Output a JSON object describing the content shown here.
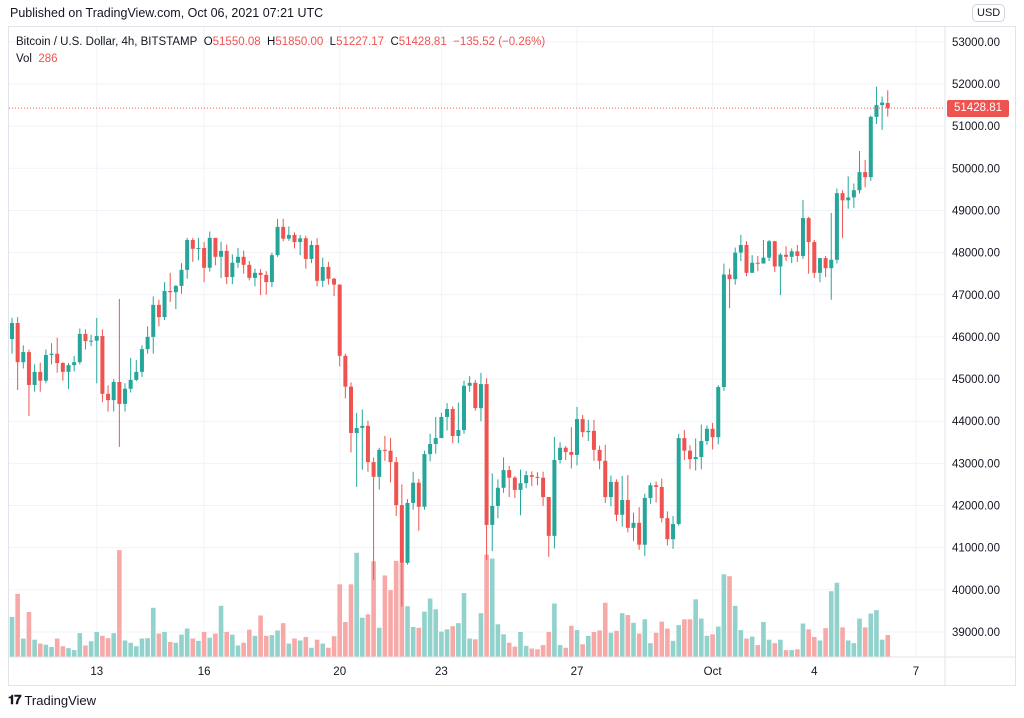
{
  "header": {
    "published": "Published on TradingView.com, Oct 06, 2021 07:21 UTC"
  },
  "legend": {
    "symbol": "Bitcoin / U.S. Dollar, 4h, BITSTAMP",
    "o_label": "O",
    "o": "51550.08",
    "h_label": "H",
    "h": "51850.00",
    "l_label": "L",
    "l": "51227.17",
    "c_label": "C",
    "c": "51428.81",
    "change": "−135.52 (−0.26%)",
    "vol_label": "Vol",
    "vol": "286"
  },
  "currency": "USD",
  "last_price": "51428.81",
  "brand": {
    "name": "TradingView",
    "logo_text": "17"
  },
  "colors": {
    "up": "#26a69a",
    "down": "#ef5350",
    "up_volume": "#92d2cc",
    "down_volume": "#f7a9a7",
    "grid": "#f0f3fa"
  },
  "chart_data": {
    "type": "candlestick",
    "interval": "4h",
    "ylim": [
      38500,
      53000
    ],
    "yticks": [
      "53000.00",
      "52000.00",
      "51000.00",
      "50000.00",
      "49000.00",
      "48000.00",
      "47000.00",
      "46000.00",
      "45000.00",
      "44000.00",
      "43000.00",
      "42000.00",
      "41000.00",
      "40000.00",
      "39000.00"
    ],
    "xticks": [
      {
        "label": "13",
        "index": 15
      },
      {
        "label": "16",
        "index": 34
      },
      {
        "label": "20",
        "index": 58
      },
      {
        "label": "23",
        "index": 76
      },
      {
        "label": "27",
        "index": 100
      },
      {
        "label": "Oct",
        "index": 124
      },
      {
        "label": "4",
        "index": 142
      },
      {
        "label": "7",
        "index": 160
      }
    ],
    "grid": true,
    "open": [
      45950,
      46330,
      45400,
      45640,
      44860,
      45170,
      44960,
      45570,
      45600,
      45380,
      45170,
      45330,
      45400,
      46070,
      45900,
      45910,
      46020,
      44650,
      44500,
      44930,
      44410,
      44770,
      44980,
      45170,
      45710,
      46000,
      46760,
      46470,
      47090,
      47060,
      47210,
      47590,
      48300,
      48090,
      48110,
      47640,
      48350,
      47900,
      48040,
      47420,
      47760,
      47900,
      47710,
      47400,
      47520,
      47470,
      47300,
      47940,
      48610,
      48330,
      48420,
      48250,
      48340,
      47850,
      48180,
      47330,
      47660,
      47380,
      47240,
      45550,
      44820,
      43720,
      43840,
      43890,
      43030,
      42680,
      43320,
      43300,
      43030,
      42010,
      40640,
      42060,
      42540,
      41970,
      43220,
      43460,
      43600,
      44100,
      44290,
      43650,
      43790,
      44840,
      44910,
      44310,
      44880,
      41540,
      41990,
      42420,
      42840,
      42660,
      42370,
      42530,
      42720,
      42680,
      42660,
      42200,
      41280,
      43080,
      43370,
      43270,
      43200,
      44050,
      43740,
      43770,
      43320,
      43060,
      42200,
      42560,
      41780,
      42130,
      41470,
      41590,
      41070,
      42180,
      42480,
      42440,
      41700,
      41200,
      41560,
      43600,
      43300,
      43100,
      43150,
      43530,
      43820,
      43620,
      44810,
      47480,
      47370,
      48000,
      48180,
      47520,
      47760,
      47740,
      47880,
      48270,
      47670,
      47950,
      47900,
      48030,
      47920,
      48820,
      48250,
      47520,
      47870,
      47630,
      47830,
      49410,
      49240,
      49310,
      49480,
      49910,
      49790,
      51220,
      51500,
      51550.08
    ],
    "high": [
      46450,
      46470,
      45800,
      45700,
      45350,
      45390,
      45700,
      45850,
      45980,
      45400,
      45380,
      45550,
      46200,
      46180,
      46050,
      46450,
      46180,
      44850,
      45000,
      46900,
      44900,
      45500,
      45450,
      45800,
      46250,
      46960,
      46880,
      47300,
      47520,
      47230,
      47750,
      48350,
      48350,
      48350,
      48250,
      48500,
      48350,
      48260,
      48190,
      47960,
      48110,
      48050,
      47800,
      47620,
      47610,
      47560,
      48000,
      48800,
      48800,
      48620,
      48480,
      48420,
      48400,
      48280,
      48340,
      47880,
      47780,
      47400,
      47250,
      45600,
      44920,
      44200,
      44280,
      44010,
      43140,
      43370,
      43650,
      43600,
      43150,
      42500,
      42150,
      42800,
      42630,
      43300,
      43700,
      44100,
      44200,
      44430,
      44350,
      44440,
      44960,
      45070,
      44980,
      45150,
      45020,
      42760,
      42620,
      43140,
      42940,
      42700,
      42850,
      42820,
      42810,
      42790,
      42800,
      42200,
      43630,
      43500,
      43410,
      43860,
      44340,
      44150,
      44030,
      44030,
      43420,
      43440,
      42710,
      42620,
      42700,
      42720,
      41830,
      41960,
      42280,
      42540,
      42570,
      42640,
      41860,
      41750,
      43700,
      43790,
      43430,
      43590,
      43920,
      43900,
      43960,
      44850,
      47740,
      47620,
      48120,
      48420,
      48270,
      47940,
      47920,
      48300,
      48300,
      48280,
      47990,
      48150,
      48100,
      48180,
      49250,
      48850,
      48300,
      47870,
      47920,
      48940,
      49520,
      49480,
      49810,
      49640,
      50410,
      50200,
      51250,
      51940,
      51700,
      51850
    ],
    "low": [
      45600,
      44740,
      45250,
      44125,
      44700,
      44700,
      44900,
      45350,
      45150,
      44960,
      44760,
      45180,
      45350,
      45700,
      45780,
      44900,
      44450,
      44230,
      44230,
      43390,
      44230,
      44680,
      44950,
      45050,
      45600,
      45600,
      46250,
      46400,
      46830,
      46660,
      47020,
      47380,
      47780,
      47820,
      47300,
      47550,
      47700,
      47400,
      47250,
      47250,
      47640,
      47500,
      47340,
      47200,
      46990,
      47000,
      47180,
      47900,
      48270,
      48280,
      48100,
      47940,
      47620,
      47750,
      47200,
      47180,
      47240,
      46970,
      45300,
      44540,
      43260,
      42440,
      42850,
      42800,
      40240,
      42380,
      43060,
      42550,
      41750,
      39600,
      40600,
      41900,
      41400,
      41900,
      43050,
      43230,
      43650,
      43780,
      43480,
      43480,
      43700,
      44700,
      44250,
      44000,
      40710,
      40920,
      41700,
      42300,
      42200,
      42180,
      41770,
      42410,
      42460,
      42480,
      41990,
      40780,
      40980,
      43000,
      43080,
      42880,
      42950,
      43620,
      43530,
      43060,
      42860,
      42060,
      41980,
      41630,
      41500,
      41360,
      41160,
      40950,
      40800,
      42040,
      42070,
      41600,
      41050,
      40970,
      41520,
      43080,
      42860,
      42830,
      42860,
      43440,
      43330,
      43450,
      44720,
      46680,
      47240,
      47800,
      47440,
      47520,
      47560,
      47760,
      47800,
      47540,
      46990,
      47800,
      47750,
      47780,
      47850,
      47500,
      47400,
      47300,
      47420,
      46880,
      47740,
      48350,
      49040,
      49060,
      49400,
      49550,
      49700,
      51050,
      50910,
      51227.17
    ],
    "close": [
      46330,
      45400,
      45640,
      44860,
      45170,
      44960,
      45570,
      45600,
      45380,
      45170,
      45330,
      45400,
      46070,
      45900,
      45910,
      46020,
      44650,
      44500,
      44930,
      44410,
      44770,
      44980,
      45170,
      45710,
      46000,
      46760,
      46470,
      47090,
      47060,
      47210,
      47590,
      48300,
      48090,
      48110,
      47640,
      48350,
      47900,
      48040,
      47420,
      47760,
      47900,
      47710,
      47400,
      47520,
      47470,
      47300,
      47940,
      48610,
      48330,
      48420,
      48250,
      48340,
      47850,
      48180,
      47330,
      47660,
      47380,
      47240,
      45550,
      44820,
      43720,
      43840,
      43890,
      43030,
      42680,
      43320,
      43300,
      43030,
      42010,
      40640,
      42060,
      42540,
      41970,
      43220,
      43460,
      43600,
      44100,
      44290,
      43650,
      43790,
      44840,
      44910,
      44310,
      44880,
      41540,
      41990,
      42420,
      42840,
      42660,
      42370,
      42530,
      42720,
      42680,
      42660,
      42200,
      41280,
      43080,
      43370,
      43270,
      43200,
      44050,
      43740,
      43770,
      43320,
      43060,
      42200,
      42560,
      41780,
      42130,
      41470,
      41590,
      41070,
      42180,
      42480,
      42440,
      41700,
      41200,
      41560,
      43600,
      43300,
      43100,
      43150,
      43530,
      43820,
      43620,
      44810,
      47480,
      47370,
      48000,
      48180,
      47520,
      47760,
      47740,
      47880,
      48270,
      47670,
      47950,
      47900,
      48030,
      47920,
      48820,
      48250,
      47520,
      47870,
      47630,
      47830,
      49410,
      49240,
      49310,
      49480,
      49910,
      49790,
      51220,
      51500,
      51560,
      51428.81
    ],
    "volume": [
      520,
      820,
      240,
      585,
      225,
      175,
      160,
      130,
      240,
      140,
      115,
      90,
      310,
      150,
      205,
      325,
      275,
      245,
      310,
      1390,
      215,
      185,
      140,
      240,
      245,
      640,
      305,
      325,
      195,
      185,
      290,
      370,
      240,
      210,
      325,
      250,
      305,
      665,
      325,
      290,
      150,
      185,
      355,
      275,
      540,
      275,
      285,
      345,
      440,
      175,
      240,
      215,
      260,
      120,
      225,
      175,
      120,
      270,
      945,
      455,
      945,
      1355,
      510,
      555,
      1245,
      380,
      1060,
      870,
      1250,
      1220,
      660,
      390,
      380,
      590,
      760,
      620,
      330,
      360,
      400,
      440,
      830,
      240,
      230,
      570,
      1330,
      1280,
      425,
      295,
      185,
      135,
      325,
      145,
      110,
      100,
      155,
      325,
      695,
      155,
      120,
      405,
      350,
      165,
      275,
      325,
      345,
      705,
      315,
      340,
      570,
      545,
      445,
      305,
      490,
      180,
      315,
      460,
      370,
      210,
      415,
      490,
      490,
      750,
      500,
      275,
      295,
      395,
      1075,
      1050,
      665,
      350,
      240,
      265,
      155,
      455,
      225,
      180,
      225,
      90,
      90,
      100,
      435,
      360,
      260,
      215,
      375,
      855,
      965,
      385,
      215,
      180,
      500,
      385,
      565,
      610,
      225,
      286
    ]
  }
}
